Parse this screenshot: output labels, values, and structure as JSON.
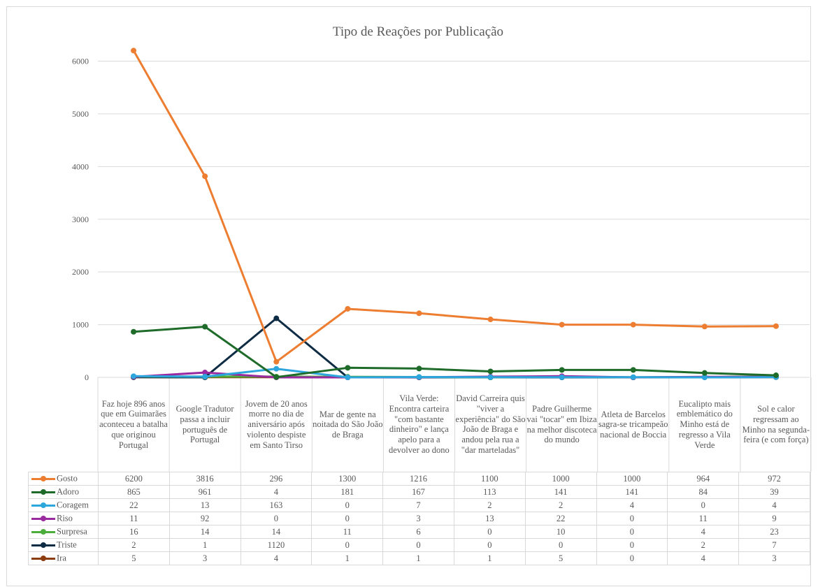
{
  "chart_data": {
    "type": "line",
    "title": "Tipo de Reações por Publicação",
    "ylim": [
      0,
      6000
    ],
    "yticks": [
      "0",
      "1000",
      "2000",
      "3000",
      "4000",
      "5000",
      "6000"
    ],
    "grid": true,
    "legend": "data table",
    "categories": [
      "Faz hoje 896 anos que em Guimarães aconteceu a batalha que originou Portugal",
      "Google Tradutor passa a incluir português de Portugal",
      "Jovem de 20 anos morre no dia de aniversário após violento despiste em Santo Tirso",
      "Mar de gente na noitada do São João de Braga",
      "Vila Verde: Encontra carteira \"com bastante dinheiro\" e lança apelo para a devolver ao dono",
      "David Carreira quis \"viver a experiência\" do São João de Braga e andou pela rua a \"dar marteladas\"",
      "Padre Guilherme vai \"tocar\" em Ibiza na melhor discoteca do mundo",
      "Atleta de Barcelos sagra-se tricampeão nacional de Boccia",
      "Eucalipto mais emblemático do Minho está de regresso a Vila Verde",
      "Sol e calor regressam ao Minho na segunda-feira (e com força)"
    ],
    "series": [
      {
        "name": "Gosto",
        "color": "#ed7d31",
        "values": [
          6200,
          3816,
          296,
          1300,
          1216,
          1100,
          1000,
          1000,
          964,
          972
        ]
      },
      {
        "name": "Adoro",
        "color": "#1e6b2a",
        "values": [
          865,
          961,
          4,
          181,
          167,
          113,
          141,
          141,
          84,
          39
        ]
      },
      {
        "name": "Coragem",
        "color": "#2ca6dd",
        "values": [
          22,
          13,
          163,
          0,
          7,
          2,
          2,
          4,
          0,
          4
        ]
      },
      {
        "name": "Riso",
        "color": "#9a2aa0",
        "values": [
          11,
          92,
          0,
          0,
          3,
          13,
          22,
          0,
          11,
          9
        ]
      },
      {
        "name": "Surpresa",
        "color": "#4cae3a",
        "values": [
          16,
          14,
          14,
          11,
          6,
          0,
          10,
          0,
          4,
          23
        ]
      },
      {
        "name": "Triste",
        "color": "#0f2c45",
        "values": [
          2,
          1,
          1120,
          0,
          0,
          0,
          0,
          0,
          2,
          7
        ]
      },
      {
        "name": "Ira",
        "color": "#8c3d10",
        "values": [
          5,
          3,
          4,
          1,
          1,
          1,
          5,
          0,
          4,
          3
        ]
      }
    ]
  }
}
